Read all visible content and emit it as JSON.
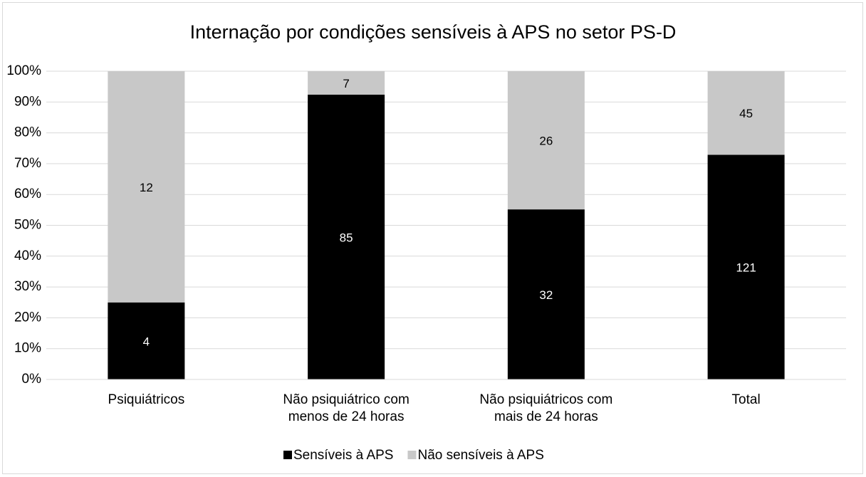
{
  "chart_data": {
    "type": "bar",
    "stacking": "percent",
    "title": "Internação por condições sensíveis à APS no setor PS-D",
    "categories": [
      "Psiquiátricos",
      "Não psiquiátrico com menos de 24 horas",
      "Não psiquiátricos com mais de 24 horas",
      "Total"
    ],
    "series": [
      {
        "name": "Sensíveis à APS",
        "color": "#000000",
        "label_color": "#ffffff",
        "values": [
          4,
          85,
          32,
          121
        ]
      },
      {
        "name": "Não sensíveis à APS",
        "color": "#c8c8c8",
        "label_color": "#000000",
        "values": [
          12,
          7,
          26,
          45
        ]
      }
    ],
    "ylim": [
      0,
      100
    ],
    "yticks": [
      {
        "value": 0,
        "label": "0%"
      },
      {
        "value": 10,
        "label": "10%"
      },
      {
        "value": 20,
        "label": "20%"
      },
      {
        "value": 30,
        "label": "30%"
      },
      {
        "value": 40,
        "label": "40%"
      },
      {
        "value": 50,
        "label": "50%"
      },
      {
        "value": 60,
        "label": "60%"
      },
      {
        "value": 70,
        "label": "70%"
      },
      {
        "value": 80,
        "label": "80%"
      },
      {
        "value": 90,
        "label": "90%"
      },
      {
        "value": 100,
        "label": "100%"
      }
    ],
    "grid": true,
    "legend": "bottom"
  }
}
